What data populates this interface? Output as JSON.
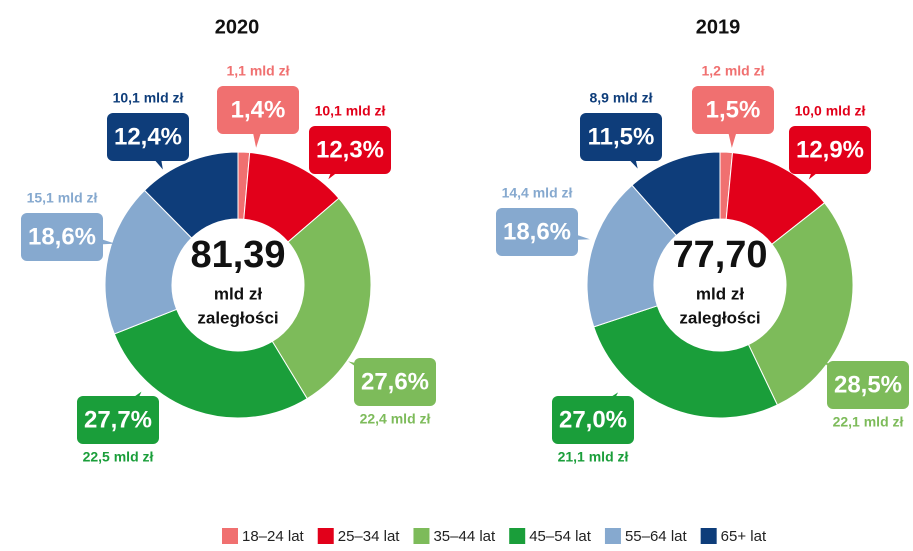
{
  "chart_data": [
    {
      "type": "pie",
      "title": "2020",
      "values": [
        1.4,
        12.3,
        27.6,
        27.7,
        18.6,
        12.4
      ],
      "value_labels": [
        "1,4%",
        "12,3%",
        "27,6%",
        "27,7%",
        "18,6%",
        "12,4%"
      ],
      "amounts": [
        1.1,
        10.1,
        22.4,
        22.5,
        15.1,
        10.1
      ],
      "amount_labels": [
        "1,1 mld zł",
        "10,1 mld zł",
        "22,4 mld zł",
        "22,5 mld zł",
        "15,1 mld zł",
        "10,1 mld zł"
      ],
      "total": 81.39,
      "total_label": "81,39",
      "center_text": [
        "mld zł",
        "zaległości"
      ]
    },
    {
      "type": "pie",
      "title": "2019",
      "values": [
        1.5,
        12.9,
        28.5,
        27.0,
        18.6,
        11.5
      ],
      "value_labels": [
        "1,5%",
        "12,9%",
        "28,5%",
        "27,0%",
        "18,6%",
        "11,5%"
      ],
      "amounts": [
        1.2,
        10.0,
        22.1,
        21.1,
        14.4,
        8.9
      ],
      "amount_labels": [
        "1,2 mld zł",
        "10,0 mld zł",
        "22,1 mld zł",
        "21,1 mld zł",
        "14,4 mld zł",
        "8,9 mld zł"
      ],
      "total": 77.7,
      "total_label": "77,70",
      "center_text": [
        "mld zł",
        "zaległości"
      ]
    }
  ],
  "legend": {
    "categories": [
      "18–24 lat",
      "25–34 lat",
      "35–44 lat",
      "45–54 lat",
      "55–64 lat",
      "65+ lat"
    ],
    "colors": [
      "#f07070",
      "#e2001a",
      "#7dbb5a",
      "#1a9e3a",
      "#86a9cf",
      "#0e3d7a"
    ]
  }
}
